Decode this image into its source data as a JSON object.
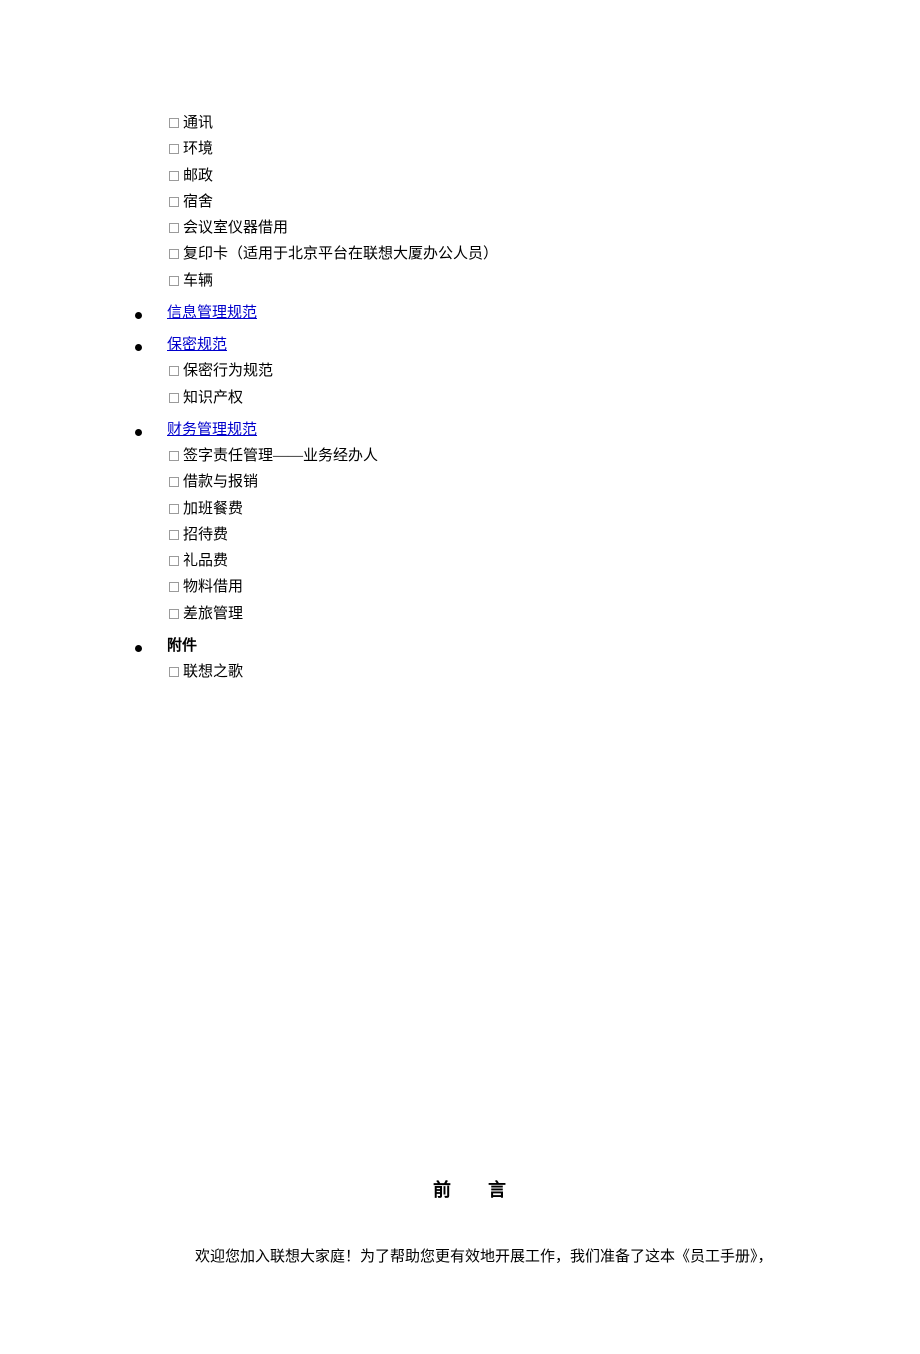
{
  "colors": {
    "link": "#0000cc",
    "text": "#000000",
    "box_border": "#9b9b9b",
    "background": "#ffffff"
  },
  "toc": {
    "group0_subitems": [
      "通讯",
      "环境",
      "邮政",
      "宿舍",
      "会议室仪器借用",
      "复印卡（适用于北京平台在联想大厦办公人员）",
      "车辆"
    ],
    "info_mgmt_label": "信息管理规范",
    "confidential_label": "保密规范",
    "confidential_subitems": [
      "保密行为规范",
      "知识产权"
    ],
    "finance_label": "财务管理规范",
    "finance_subitems": [
      "签字责任管理——业务经办人",
      "借款与报销",
      "加班餐费",
      "招待费",
      "礼品费",
      "物料借用",
      "差旅管理"
    ],
    "appendix_label": "附件",
    "appendix_subitems": [
      "联想之歌"
    ]
  },
  "preface": {
    "heading_a": "前",
    "heading_b": "言",
    "paragraph": "欢迎您加入联想大家庭！为了帮助您更有效地开展工作，我们准备了这本《员工手册》，"
  }
}
